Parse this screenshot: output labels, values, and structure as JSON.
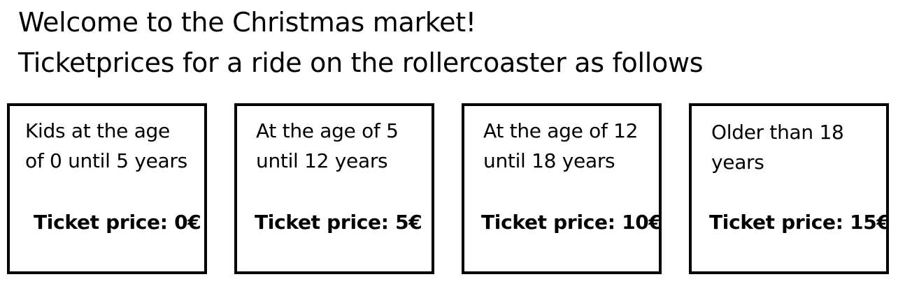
{
  "header": {
    "line1": "Welcome to the Christmas market!",
    "line2": "Ticketprices for a ride on the rollercoaster as follows"
  },
  "cards": [
    {
      "desc_line1": "Kids at the age",
      "desc_line2": "of 0 until 5 years",
      "price": "Ticket price: 0€"
    },
    {
      "desc_line1": "At the age of 5",
      "desc_line2": "until 12 years",
      "price": "Ticket price: 5€"
    },
    {
      "desc_line1": "At the age of 12",
      "desc_line2": "until 18 years",
      "price": "Ticket price: 10€"
    },
    {
      "desc_line1": "Older than 18",
      "desc_line2": "years",
      "price": "Ticket price: 15€"
    }
  ]
}
